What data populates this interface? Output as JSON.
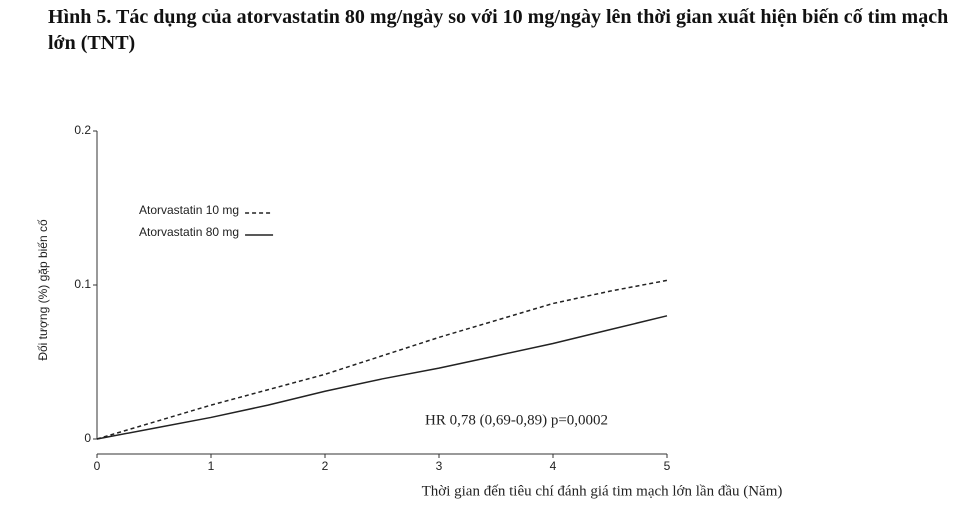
{
  "chart_data": {
    "type": "line",
    "title": "Hình 5. Tác dụng của atorvastatin 80 mg/ngày so với 10 mg/ngày lên thời gian xuất hiện biến cố tim mạch lớn (TNT)",
    "x_label": "Thời gian đến tiêu chí đánh giá tim mạch lớn lần đầu (Năm)",
    "y_label": "Đối tượng (%) gặp biến cố",
    "annotation": "HR 0,78 (0,69-0,89) p=0,0002",
    "x": [
      0,
      0.5,
      1,
      1.5,
      2,
      2.5,
      3,
      3.5,
      4,
      4.5,
      5
    ],
    "series": [
      {
        "name": "Atorvastatin 10 mg",
        "color": "#222222",
        "dash": "dashed",
        "values": [
          0,
          0.011,
          0.022,
          0.032,
          0.042,
          0.054,
          0.066,
          0.077,
          0.088,
          0.096,
          0.103
        ]
      },
      {
        "name": "Atorvastatin 80 mg",
        "color": "#222222",
        "dash": "solid",
        "values": [
          0,
          0.007,
          0.014,
          0.022,
          0.031,
          0.039,
          0.046,
          0.054,
          0.062,
          0.071,
          0.08
        ]
      }
    ],
    "xlim": [
      0,
      5
    ],
    "xticks": [
      0,
      1,
      2,
      3,
      4,
      5
    ],
    "ylim": [
      0,
      0.2
    ],
    "yticks": [
      0,
      0.1,
      0.2
    ],
    "grid": false,
    "legend": "upper left"
  }
}
